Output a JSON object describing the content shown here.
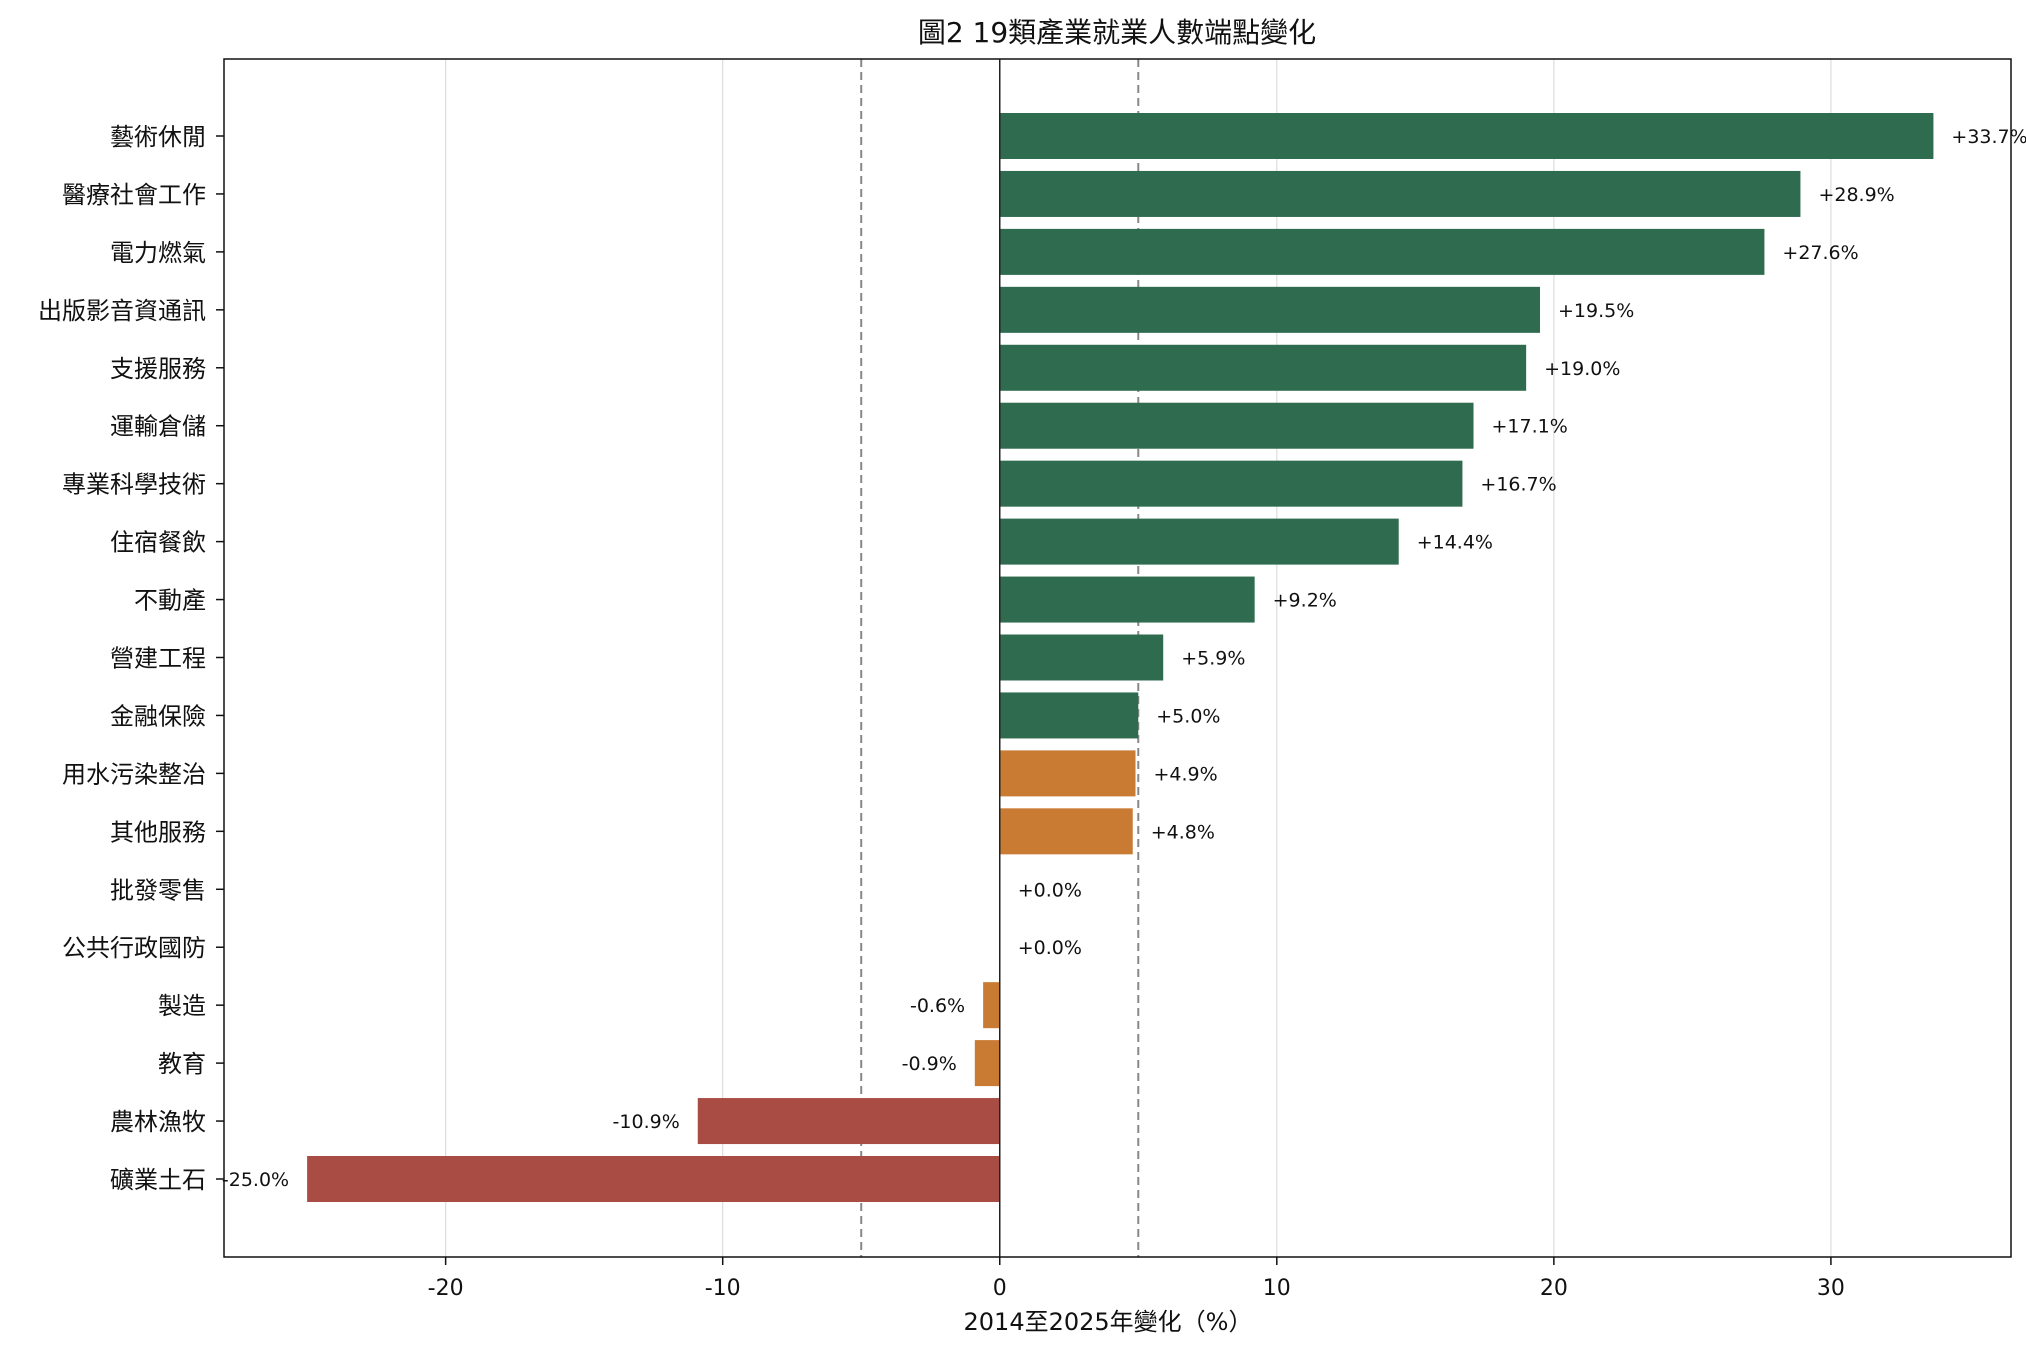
{
  "chart_data": {
    "type": "bar",
    "orientation": "horizontal",
    "title": "圖2 19類產業就業人數端點變化",
    "xlabel": "2014至2025年變化（%）",
    "ylabel": "",
    "xlim": [
      -28,
      36.5
    ],
    "xticks": [
      -20,
      -10,
      0,
      10,
      20,
      30
    ],
    "grid": "vertical",
    "reference_lines": [
      -5,
      5
    ],
    "categories": [
      "藝術休閒",
      "醫療社會工作",
      "電力燃氣",
      "出版影音資通訊",
      "支援服務",
      "運輸倉儲",
      "專業科學技術",
      "住宿餐飲",
      "不動產",
      "營建工程",
      "金融保險",
      "用水污染整治",
      "其他服務",
      "批發零售",
      "公共行政國防",
      "製造",
      "教育",
      "農林漁牧",
      "礦業土石"
    ],
    "values": [
      33.7,
      28.9,
      27.6,
      19.5,
      19.0,
      17.1,
      16.7,
      14.4,
      9.2,
      5.9,
      5.0,
      4.9,
      4.8,
      0.0,
      0.0,
      -0.6,
      -0.9,
      -10.9,
      -25.0
    ],
    "labels": [
      "+33.7%",
      "+28.9%",
      "+27.6%",
      "+19.5%",
      "+19.0%",
      "+17.1%",
      "+16.7%",
      "+14.4%",
      "+9.2%",
      "+5.9%",
      "+5.0%",
      "+4.9%",
      "+4.8%",
      "+0.0%",
      "+0.0%",
      "-0.6%",
      "-0.9%",
      "-10.9%",
      "-25.0%"
    ],
    "colors": {
      "growth": "#2e6b4f",
      "stable": "#c97a33",
      "decline": "#a84c44",
      "reference_line": "#888888",
      "grid": "#dddddd",
      "zero_line": "#222222"
    },
    "color_groups": [
      "growth",
      "growth",
      "growth",
      "growth",
      "growth",
      "growth",
      "growth",
      "growth",
      "growth",
      "growth",
      "growth",
      "stable",
      "stable",
      "stable",
      "stable",
      "stable",
      "stable",
      "decline",
      "decline"
    ]
  }
}
